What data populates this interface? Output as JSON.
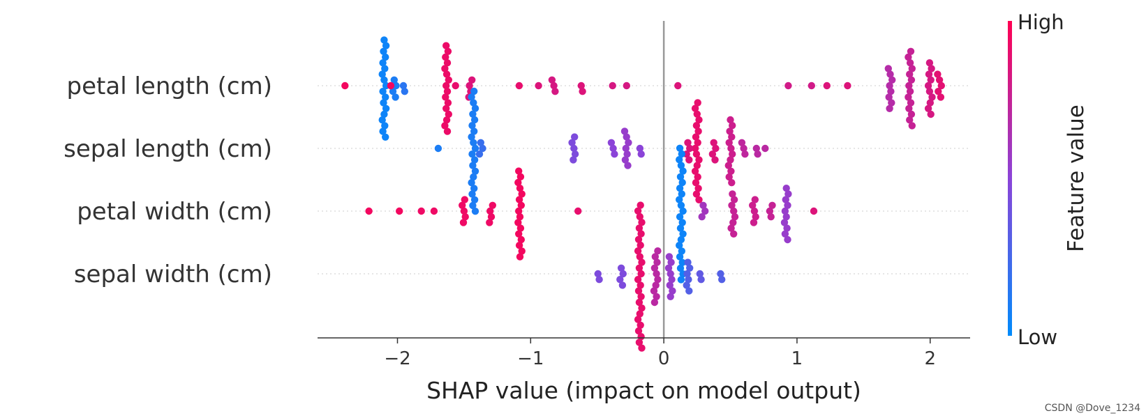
{
  "chart_data": {
    "type": "scatter",
    "subtype": "shap-beeswarm",
    "xlabel": "SHAP value (impact on model output)",
    "xlim": [
      -2.6,
      2.3
    ],
    "xticks": [
      {
        "value": -2,
        "label": "−2"
      },
      {
        "value": -1,
        "label": "−1"
      },
      {
        "value": 0,
        "label": "0"
      },
      {
        "value": 1,
        "label": "1"
      },
      {
        "value": 2,
        "label": "2"
      }
    ],
    "colorbar": {
      "title": "Feature value",
      "high_label": "High",
      "low_label": "Low",
      "low_color": "#008bfb",
      "high_color": "#ff0052"
    },
    "features": [
      {
        "name": "petal length (cm)",
        "clusters": [
          {
            "x": -2.38,
            "n": 1,
            "f": 0.95
          },
          {
            "x": -2.1,
            "n": 18,
            "f": 0.05
          },
          {
            "x": -2.02,
            "n": 4,
            "f": 0.1
          },
          {
            "x": -1.96,
            "n": 2,
            "f": 0.15
          },
          {
            "x": -2.05,
            "n": 1,
            "f": 0.95
          },
          {
            "x": -1.63,
            "n": 16,
            "f": 0.92
          },
          {
            "x": -1.45,
            "n": 4,
            "f": 0.85
          },
          {
            "x": -1.55,
            "n": 1,
            "f": 0.9
          },
          {
            "x": -1.1,
            "n": 1,
            "f": 0.9
          },
          {
            "x": -0.95,
            "n": 1,
            "f": 0.85
          },
          {
            "x": -0.83,
            "n": 3,
            "f": 0.82
          },
          {
            "x": -0.62,
            "n": 2,
            "f": 0.85
          },
          {
            "x": -0.38,
            "n": 1,
            "f": 0.82
          },
          {
            "x": -0.27,
            "n": 1,
            "f": 0.82
          },
          {
            "x": 0.12,
            "n": 1,
            "f": 0.85
          },
          {
            "x": 0.92,
            "n": 1,
            "f": 0.8
          },
          {
            "x": 1.1,
            "n": 1,
            "f": 0.8
          },
          {
            "x": 1.22,
            "n": 1,
            "f": 0.85
          },
          {
            "x": 1.38,
            "n": 1,
            "f": 0.85
          },
          {
            "x": 1.7,
            "n": 8,
            "f": 0.68
          },
          {
            "x": 1.85,
            "n": 14,
            "f": 0.75
          },
          {
            "x": 2.0,
            "n": 10,
            "f": 0.82
          },
          {
            "x": 2.07,
            "n": 5,
            "f": 0.88
          }
        ]
      },
      {
        "name": "sepal length (cm)",
        "clusters": [
          {
            "x": -1.68,
            "n": 1,
            "f": 0.1
          },
          {
            "x": -1.43,
            "n": 22,
            "f": 0.1
          },
          {
            "x": -1.37,
            "n": 3,
            "f": 0.2
          },
          {
            "x": -0.68,
            "n": 5,
            "f": 0.45
          },
          {
            "x": -0.38,
            "n": 3,
            "f": 0.5
          },
          {
            "x": -0.28,
            "n": 7,
            "f": 0.55
          },
          {
            "x": -0.17,
            "n": 2,
            "f": 0.5
          },
          {
            "x": 0.25,
            "n": 18,
            "f": 0.9
          },
          {
            "x": 0.18,
            "n": 4,
            "f": 0.85
          },
          {
            "x": 0.38,
            "n": 4,
            "f": 0.85
          },
          {
            "x": 0.5,
            "n": 12,
            "f": 0.78
          },
          {
            "x": 0.6,
            "n": 3,
            "f": 0.72
          },
          {
            "x": 0.7,
            "n": 2,
            "f": 0.7
          },
          {
            "x": 0.77,
            "n": 1,
            "f": 0.7
          }
        ]
      },
      {
        "name": "petal width (cm)",
        "clusters": [
          {
            "x": -2.2,
            "n": 1,
            "f": 0.95
          },
          {
            "x": -2.0,
            "n": 1,
            "f": 0.95
          },
          {
            "x": -1.83,
            "n": 1,
            "f": 0.93
          },
          {
            "x": -1.73,
            "n": 1,
            "f": 0.93
          },
          {
            "x": -1.5,
            "n": 5,
            "f": 0.93
          },
          {
            "x": -1.3,
            "n": 4,
            "f": 0.93
          },
          {
            "x": -1.08,
            "n": 16,
            "f": 0.95
          },
          {
            "x": -0.63,
            "n": 1,
            "f": 0.9
          },
          {
            "x": 0.13,
            "n": 24,
            "f": 0.05
          },
          {
            "x": 0.3,
            "n": 3,
            "f": 0.6
          },
          {
            "x": 0.52,
            "n": 8,
            "f": 0.75
          },
          {
            "x": 0.68,
            "n": 5,
            "f": 0.78
          },
          {
            "x": 0.8,
            "n": 3,
            "f": 0.75
          },
          {
            "x": 0.92,
            "n": 10,
            "f": 0.55
          },
          {
            "x": 1.14,
            "n": 1,
            "f": 0.85
          }
        ]
      },
      {
        "name": "sepal width (cm)",
        "clusters": [
          {
            "x": -0.48,
            "n": 2,
            "f": 0.45
          },
          {
            "x": -0.32,
            "n": 4,
            "f": 0.45
          },
          {
            "x": -0.18,
            "n": 26,
            "f": 0.9
          },
          {
            "x": -0.06,
            "n": 10,
            "f": 0.7
          },
          {
            "x": 0.05,
            "n": 8,
            "f": 0.55
          },
          {
            "x": 0.18,
            "n": 6,
            "f": 0.3
          },
          {
            "x": 0.28,
            "n": 2,
            "f": 0.35
          },
          {
            "x": 0.44,
            "n": 2,
            "f": 0.3
          }
        ]
      }
    ]
  },
  "watermark": "CSDN @Dove_1234"
}
